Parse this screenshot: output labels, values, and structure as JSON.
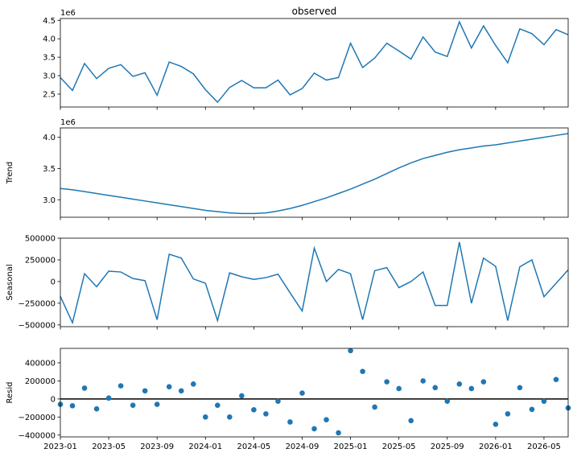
{
  "chart_data": {
    "type": "line",
    "x": [
      "2023-01",
      "2023-02",
      "2023-03",
      "2023-04",
      "2023-05",
      "2023-06",
      "2023-07",
      "2023-08",
      "2023-09",
      "2023-10",
      "2023-11",
      "2023-12",
      "2024-01",
      "2024-02",
      "2024-03",
      "2024-04",
      "2024-05",
      "2024-06",
      "2024-07",
      "2024-08",
      "2024-09",
      "2024-10",
      "2024-11",
      "2024-12",
      "2025-01",
      "2025-02",
      "2025-03",
      "2025-04",
      "2025-05",
      "2025-06",
      "2025-07",
      "2025-08",
      "2025-09",
      "2025-10",
      "2025-11",
      "2025-12",
      "2026-01",
      "2026-02",
      "2026-03",
      "2026-04",
      "2026-05",
      "2026-06",
      "2026-07"
    ],
    "xticks": [
      "2023-01",
      "2023-05",
      "2023-09",
      "2024-01",
      "2024-05",
      "2024-09",
      "2025-01",
      "2025-05",
      "2025-09",
      "2026-01",
      "2026-05"
    ],
    "panels": [
      {
        "title": "observed",
        "ylabel": "",
        "kind": "line",
        "offset": "1e6",
        "ylim": [
          2.15,
          4.55
        ],
        "yticks": [
          2.5,
          3.0,
          3.5,
          4.0,
          4.5
        ],
        "ytick_labels": [
          "2.5",
          "3.0",
          "3.5",
          "4.0",
          "4.5"
        ],
        "values": [
          2.95,
          2.6,
          3.33,
          2.92,
          3.2,
          3.3,
          2.98,
          3.08,
          2.47,
          3.37,
          3.25,
          3.05,
          2.62,
          2.28,
          2.68,
          2.87,
          2.67,
          2.67,
          2.88,
          2.48,
          2.65,
          3.07,
          2.88,
          2.95,
          3.88,
          3.22,
          3.48,
          3.88,
          3.67,
          3.45,
          4.05,
          3.64,
          3.52,
          4.46,
          3.75,
          4.35,
          3.82,
          3.35,
          4.27,
          4.14,
          3.84,
          4.25,
          4.11
        ]
      },
      {
        "title": "",
        "ylabel": "Trend",
        "kind": "line",
        "offset": "1e6",
        "ylim": [
          2.72,
          4.15
        ],
        "yticks": [
          3.0,
          3.5,
          4.0
        ],
        "ytick_labels": [
          "3.0",
          "3.5",
          "4.0"
        ],
        "values": [
          3.18,
          3.16,
          3.13,
          3.1,
          3.07,
          3.04,
          3.01,
          2.98,
          2.95,
          2.92,
          2.89,
          2.86,
          2.83,
          2.81,
          2.79,
          2.78,
          2.78,
          2.79,
          2.82,
          2.86,
          2.91,
          2.97,
          3.03,
          3.1,
          3.17,
          3.25,
          3.33,
          3.42,
          3.51,
          3.59,
          3.66,
          3.71,
          3.76,
          3.8,
          3.83,
          3.86,
          3.88,
          3.91,
          3.94,
          3.97,
          4.0,
          4.03,
          4.06
        ]
      },
      {
        "title": "",
        "ylabel": "Seasonal",
        "kind": "line",
        "offset": "",
        "ylim": [
          -520000,
          500000
        ],
        "yticks": [
          -500000,
          -250000,
          0,
          250000,
          500000
        ],
        "ytick_labels": [
          "−500000",
          "−250000",
          "0",
          "250000",
          "500000"
        ],
        "values": [
          -170000,
          -475000,
          90000,
          -60000,
          120000,
          110000,
          35000,
          10000,
          -440000,
          315000,
          270000,
          30000,
          -20000,
          -450000,
          100000,
          55000,
          25000,
          45000,
          85000,
          -130000,
          -340000,
          385000,
          0,
          140000,
          90000,
          -440000,
          125000,
          160000,
          -70000,
          0,
          110000,
          -275000,
          -275000,
          455000,
          -250000,
          270000,
          175000,
          -450000,
          170000,
          250000,
          -175000,
          -20000,
          135000
        ]
      },
      {
        "title": "",
        "ylabel": "Resid",
        "kind": "scatter",
        "offset": "",
        "ylim": [
          -420000,
          560000
        ],
        "yticks": [
          -400000,
          -200000,
          0,
          200000,
          400000
        ],
        "ytick_labels": [
          "−400000",
          "−200000",
          "0",
          "200000",
          "400000"
        ],
        "values": [
          -60000,
          -75000,
          120000,
          -110000,
          10000,
          145000,
          -70000,
          90000,
          -60000,
          135000,
          90000,
          165000,
          -200000,
          -70000,
          -200000,
          35000,
          -120000,
          -165000,
          -25000,
          -255000,
          65000,
          -330000,
          -230000,
          -375000,
          535000,
          305000,
          -90000,
          190000,
          115000,
          -240000,
          200000,
          125000,
          -25000,
          165000,
          115000,
          190000,
          -280000,
          -165000,
          125000,
          -115000,
          -25000,
          215000,
          -100000
        ]
      }
    ]
  }
}
